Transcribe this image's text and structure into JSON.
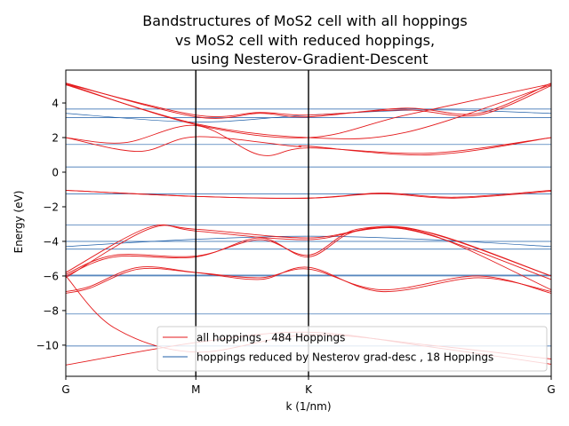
{
  "chart_data": {
    "type": "line",
    "title_lines": [
      "Bandstructures of MoS2 cell with all hoppings",
      "vs MoS2 cell with reduced hoppings,",
      "using Nesterov-Gradient-Descent"
    ],
    "xlabel": "k (1/nm)",
    "ylabel": "Energy (eV)",
    "ylim": [
      -11.8,
      5.9
    ],
    "yticks": [
      4,
      2,
      0,
      -2,
      -4,
      -6,
      -8,
      -10
    ],
    "ytick_labels": [
      "4",
      "2",
      "0",
      "−2",
      "−4",
      "−6",
      "−8",
      "−10"
    ],
    "k_points": [
      {
        "label": "G",
        "pos": 0.0
      },
      {
        "label": "M",
        "pos": 0.2679
      },
      {
        "label": "K",
        "pos": 0.5
      },
      {
        "label": "G",
        "pos": 1.0
      }
    ],
    "legend": {
      "position": "lower right",
      "show": true
    },
    "grid": false,
    "series": [
      {
        "name": "all hoppings , 484 Hoppings",
        "color": "#e41a1c",
        "bands": [
          {
            "x": [
              0,
              0.268,
              0.5,
              0.75,
              1
            ],
            "y": [
              -11.15,
              -9.85,
              -9.25,
              -10.1,
              -11.1
            ]
          },
          {
            "x": [
              0,
              0.1,
              0.268,
              0.5,
              0.75,
              1
            ],
            "y": [
              -6.0,
              -9.0,
              -10.4,
              -9.4,
              -10.0,
              -10.8
            ]
          },
          {
            "x": [
              0,
              0.05,
              0.15,
              0.268,
              0.4,
              0.5,
              0.65,
              0.85,
              1
            ],
            "y": [
              -6.9,
              -6.6,
              -5.5,
              -5.8,
              -6.2,
              -5.5,
              -6.9,
              -6.1,
              -6.9
            ]
          },
          {
            "x": [
              0,
              0.05,
              0.15,
              0.268,
              0.4,
              0.5,
              0.65,
              0.85,
              1
            ],
            "y": [
              -7.0,
              -6.7,
              -5.6,
              -5.8,
              -6.1,
              -5.6,
              -6.8,
              -6.0,
              -7.0
            ]
          },
          {
            "x": [
              0,
              0.1,
              0.268,
              0.4,
              0.5,
              0.6,
              0.75,
              1
            ],
            "y": [
              -6.0,
              -4.9,
              -4.9,
              -3.8,
              -4.9,
              -3.4,
              -3.6,
              -6.8
            ]
          },
          {
            "x": [
              0,
              0.1,
              0.268,
              0.4,
              0.5,
              0.6,
              0.75,
              1
            ],
            "y": [
              -5.9,
              -4.8,
              -4.85,
              -3.9,
              -4.8,
              -3.3,
              -3.5,
              -6.0
            ]
          },
          {
            "x": [
              0,
              0.17,
              0.268,
              0.5,
              0.7,
              1
            ],
            "y": [
              -5.8,
              -3.2,
              -3.4,
              -3.9,
              -3.2,
              -6.0
            ]
          },
          {
            "x": [
              0,
              0.17,
              0.268,
              0.5,
              0.7,
              1
            ],
            "y": [
              -6.1,
              -3.3,
              -3.3,
              -3.8,
              -3.3,
              -6.2
            ]
          },
          {
            "x": [
              0,
              0.268,
              0.5,
              0.65,
              0.8,
              1
            ],
            "y": [
              -1.05,
              -1.4,
              -1.5,
              -1.2,
              -1.45,
              -1.05
            ]
          },
          {
            "x": [
              0,
              0.268,
              0.5,
              0.65,
              0.8,
              1
            ],
            "y": [
              -1.05,
              -1.4,
              -1.5,
              -1.25,
              -1.5,
              -1.1
            ]
          },
          {
            "x": [
              0,
              0.15,
              0.268,
              0.47,
              0.5,
              0.75,
              1
            ],
            "y": [
              2.0,
              1.2,
              2.05,
              1.5,
              1.5,
              1.0,
              2.0
            ]
          },
          {
            "x": [
              0,
              0.12,
              0.268,
              0.4,
              0.5,
              0.75,
              1
            ],
            "y": [
              2.0,
              1.7,
              2.7,
              1.0,
              1.4,
              1.1,
              2.0
            ]
          },
          {
            "x": [
              0,
              0.268,
              0.5,
              0.7,
              1
            ],
            "y": [
              5.1,
              2.75,
              2.0,
              3.3,
              5.1
            ]
          },
          {
            "x": [
              0,
              0.268,
              0.5,
              0.7,
              1
            ],
            "y": [
              5.05,
              2.8,
              2.0,
              2.3,
              5.05
            ]
          },
          {
            "x": [
              0,
              0.268,
              0.4,
              0.5,
              0.7,
              0.85,
              1
            ],
            "y": [
              5.1,
              3.3,
              3.45,
              3.3,
              3.6,
              3.3,
              5.0
            ]
          },
          {
            "x": [
              0,
              0.268,
              0.4,
              0.5,
              0.7,
              0.85,
              1
            ],
            "y": [
              5.15,
              3.2,
              3.4,
              3.2,
              3.7,
              3.4,
              5.15
            ]
          }
        ]
      },
      {
        "name": "hoppings reduced by Nesterov grad-desc , 18 Hoppings",
        "color": "#1f5fa8",
        "bands": [
          {
            "x": [
              0,
              1
            ],
            "y": [
              -10.05,
              -10.05
            ]
          },
          {
            "x": [
              0,
              1
            ],
            "y": [
              -8.2,
              -8.2
            ]
          },
          {
            "x": [
              0,
              1
            ],
            "y": [
              -5.95,
              -5.95
            ]
          },
          {
            "x": [
              0,
              1
            ],
            "y": [
              -6.0,
              -6.0
            ]
          },
          {
            "x": [
              0,
              1
            ],
            "y": [
              -4.45,
              -4.45
            ]
          },
          {
            "x": [
              0,
              0.25,
              0.5,
              0.75,
              1
            ],
            "y": [
              -4.3,
              -3.9,
              -3.7,
              -3.9,
              -4.3
            ]
          },
          {
            "x": [
              0,
              1
            ],
            "y": [
              -4.0,
              -4.0
            ]
          },
          {
            "x": [
              0,
              1
            ],
            "y": [
              -3.05,
              -3.05
            ]
          },
          {
            "x": [
              0,
              1
            ],
            "y": [
              -1.25,
              -1.25
            ]
          },
          {
            "x": [
              0,
              1
            ],
            "y": [
              0.3,
              0.3
            ]
          },
          {
            "x": [
              0,
              1
            ],
            "y": [
              1.6,
              1.6
            ]
          },
          {
            "x": [
              0,
              1
            ],
            "y": [
              3.15,
              3.15
            ]
          },
          {
            "x": [
              0,
              0.268,
              0.5,
              0.75,
              1
            ],
            "y": [
              3.4,
              2.9,
              3.3,
              3.6,
              3.4
            ]
          },
          {
            "x": [
              0,
              1
            ],
            "y": [
              3.65,
              3.65
            ]
          }
        ]
      }
    ]
  }
}
